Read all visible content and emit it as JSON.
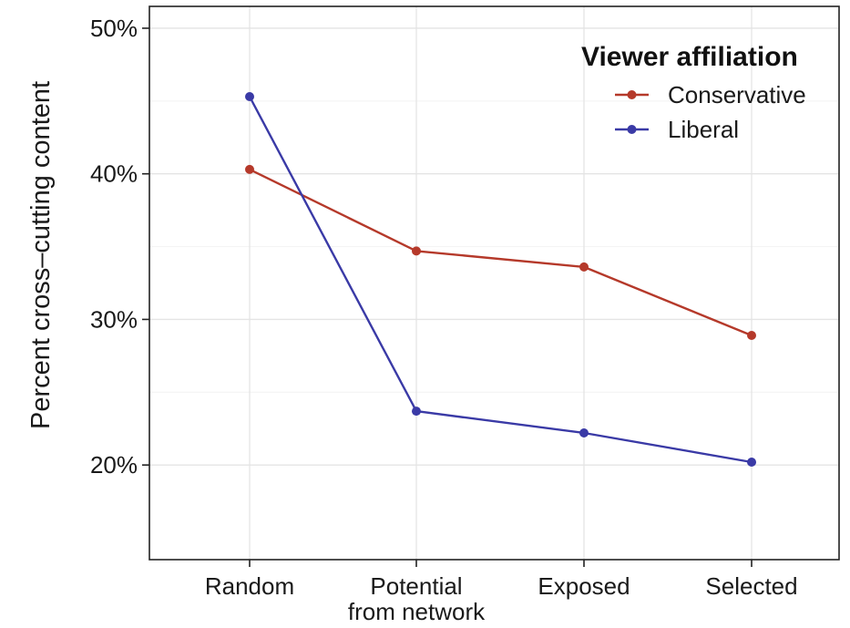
{
  "chart_data": {
    "type": "line",
    "title": "",
    "xlabel": "",
    "ylabel": "Percent cross–cutting content",
    "categories": [
      "Random",
      "Potential from network",
      "Exposed",
      "Selected"
    ],
    "category_lines": [
      [
        "Random"
      ],
      [
        "Potential",
        "from network"
      ],
      [
        "Exposed"
      ],
      [
        "Selected"
      ]
    ],
    "series": [
      {
        "name": "Conservative",
        "color": "#b5392a",
        "values": [
          40.3,
          34.7,
          33.6,
          28.9
        ]
      },
      {
        "name": "Liberal",
        "color": "#3a3aa6",
        "values": [
          45.3,
          23.7,
          22.2,
          20.2
        ]
      }
    ],
    "yticks": [
      20,
      30,
      40,
      50
    ],
    "ytick_labels": [
      "20%",
      "30%",
      "40%",
      "50%"
    ],
    "ylim": [
      13.5,
      51.5
    ],
    "grid": true,
    "legend": {
      "title": "Viewer affiliation",
      "placement": "top-right"
    }
  }
}
